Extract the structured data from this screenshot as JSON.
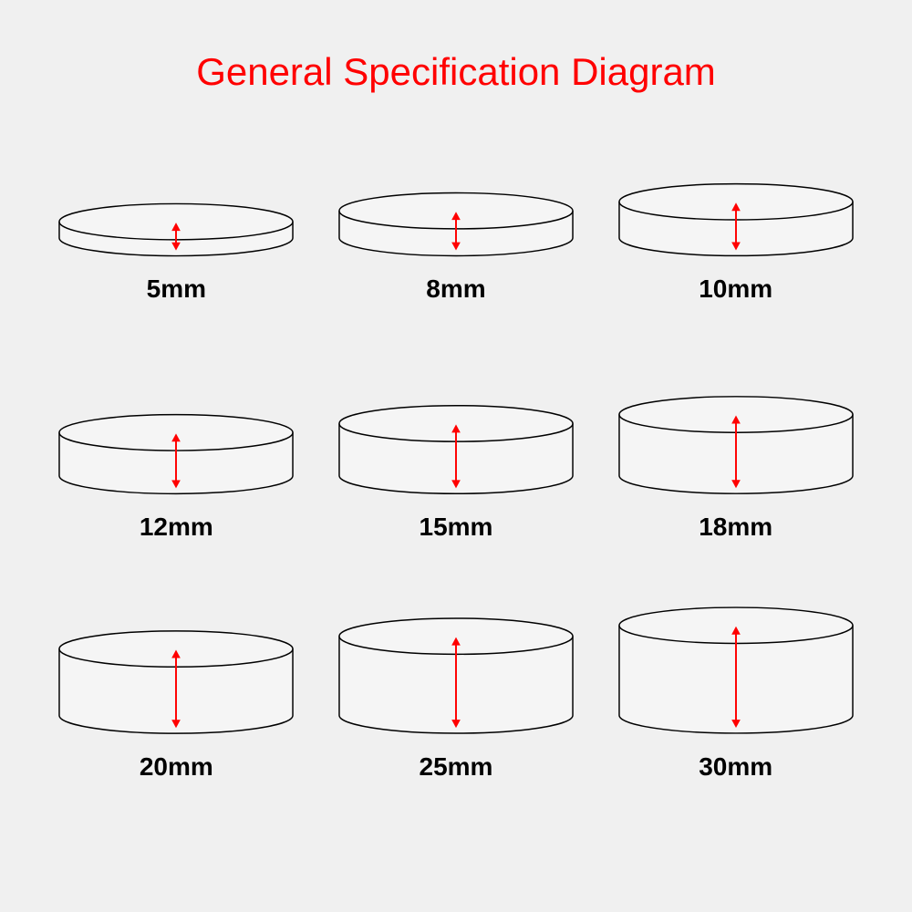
{
  "title": "General Specification Diagram",
  "title_color": "#ff0000",
  "background_color": "#f0f0f0",
  "stroke_color": "#000000",
  "arrow_color": "#ff0000",
  "label_color": "#000000",
  "label_fontsize": 28,
  "title_fontsize": 42,
  "cylinder_fill": "#f5f5f5",
  "cylinder_width": 260,
  "ellipse_ry": 20,
  "stroke_width": 1.5,
  "arrow_width": 2,
  "arrowhead_size": 7,
  "items": [
    {
      "label": "5mm",
      "side_height": 18
    },
    {
      "label": "8mm",
      "side_height": 30
    },
    {
      "label": "10mm",
      "side_height": 40
    },
    {
      "label": "12mm",
      "side_height": 48
    },
    {
      "label": "15mm",
      "side_height": 58
    },
    {
      "label": "18mm",
      "side_height": 68
    },
    {
      "label": "20mm",
      "side_height": 74
    },
    {
      "label": "25mm",
      "side_height": 88
    },
    {
      "label": "30mm",
      "side_height": 100
    }
  ]
}
